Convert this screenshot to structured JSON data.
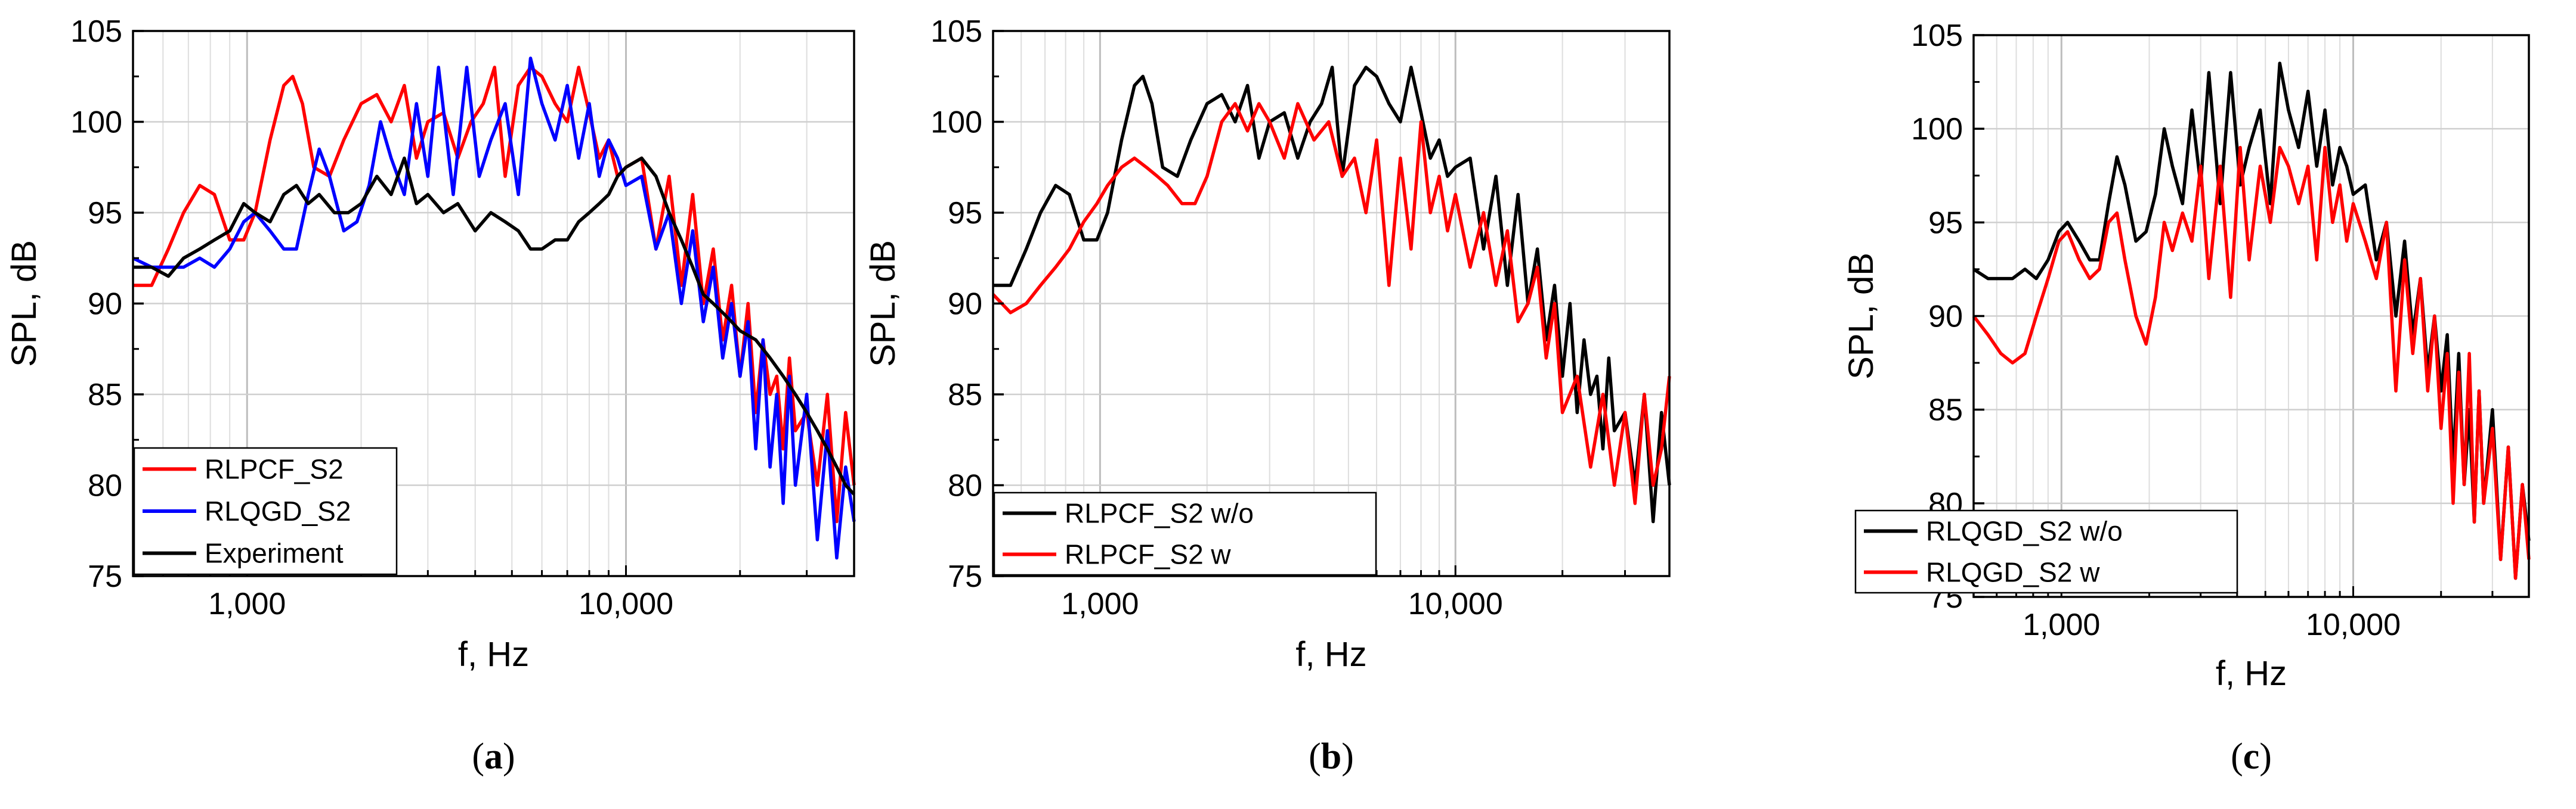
{
  "figure": {
    "panels": [
      "a",
      "b",
      "c"
    ]
  },
  "chart_data": [
    {
      "id": "a",
      "type": "line",
      "panel_label": "a",
      "xlabel": "f, Hz",
      "ylabel": "SPL, dB",
      "xscale": "log",
      "xlim": [
        500,
        40000
      ],
      "ylim": [
        75,
        105
      ],
      "yticks": [
        75,
        80,
        85,
        90,
        95,
        100,
        105
      ],
      "xticks": [
        1000,
        10000
      ],
      "xtick_labels": [
        "1,000",
        "10,000"
      ],
      "grid": true,
      "legend_position": "bottom-left",
      "series": [
        {
          "name": "RLPCF_S2",
          "color": "#ff0000",
          "x": [
            500,
            560,
            620,
            680,
            750,
            820,
            900,
            980,
            1050,
            1150,
            1250,
            1320,
            1400,
            1500,
            1650,
            1800,
            2000,
            2200,
            2400,
            2600,
            2800,
            3000,
            3300,
            3600,
            3900,
            4200,
            4500,
            4800,
            5200,
            5600,
            6000,
            6500,
            7000,
            7500,
            8000,
            8500,
            9000,
            9500,
            10000,
            11000,
            12000,
            13000,
            14000,
            15000,
            16000,
            17000,
            18000,
            19000,
            20000,
            21000,
            22000,
            23000,
            24000,
            25000,
            26000,
            27000,
            28000,
            30000,
            32000,
            34000,
            36000,
            38000,
            40000
          ],
          "values": [
            91,
            91,
            93,
            95,
            96.5,
            96,
            93.5,
            93.5,
            95,
            99,
            102,
            102.5,
            101,
            97.5,
            97,
            99,
            101,
            101.5,
            100,
            102,
            98,
            100,
            100.5,
            98,
            100,
            101,
            103,
            97,
            102,
            103,
            102.5,
            101,
            100,
            103,
            100.5,
            98,
            99,
            97,
            97.5,
            98,
            93,
            97,
            91,
            96,
            90,
            93,
            88,
            91,
            86,
            90,
            84,
            88,
            85,
            86,
            82,
            87,
            83,
            84,
            80,
            85,
            78,
            84,
            80
          ]
        },
        {
          "name": "RLQGD_S2",
          "color": "#0000ff",
          "x": [
            500,
            560,
            620,
            680,
            750,
            820,
            900,
            980,
            1050,
            1150,
            1250,
            1350,
            1450,
            1550,
            1650,
            1800,
            1950,
            2100,
            2250,
            2400,
            2600,
            2800,
            3000,
            3200,
            3500,
            3800,
            4100,
            4400,
            4800,
            5200,
            5600,
            6000,
            6500,
            7000,
            7500,
            8000,
            8500,
            9000,
            9500,
            10000,
            11000,
            12000,
            13000,
            14000,
            15000,
            16000,
            17000,
            18000,
            19000,
            20000,
            21000,
            22000,
            23000,
            24000,
            25000,
            26000,
            27000,
            28000,
            30000,
            32000,
            34000,
            36000,
            38000,
            40000
          ],
          "values": [
            92.5,
            92,
            92,
            92,
            92.5,
            92,
            93,
            94.5,
            95,
            94,
            93,
            93,
            96,
            98.5,
            97,
            94,
            94.5,
            96.5,
            100,
            98,
            96,
            101,
            97,
            103,
            96,
            103,
            97,
            99,
            101,
            96,
            103.5,
            101,
            99,
            102,
            98,
            101,
            97,
            99,
            98,
            96.5,
            97,
            93,
            95,
            90,
            94,
            89,
            92,
            87,
            90,
            86,
            89,
            82,
            88,
            81,
            85,
            79,
            86,
            80,
            85,
            77,
            83,
            76,
            81,
            78
          ]
        },
        {
          "name": "Experiment",
          "color": "#000000",
          "x": [
            500,
            560,
            620,
            680,
            750,
            820,
            900,
            980,
            1050,
            1150,
            1250,
            1350,
            1450,
            1550,
            1700,
            1850,
            2000,
            2200,
            2400,
            2600,
            2800,
            3000,
            3300,
            3600,
            4000,
            4400,
            4800,
            5200,
            5600,
            6000,
            6500,
            7000,
            7500,
            8000,
            8500,
            9000,
            9500,
            10000,
            11000,
            12000,
            13000,
            14000,
            15000,
            16000,
            17000,
            18000,
            19000,
            20000,
            22000,
            24000,
            26000,
            28000,
            30000,
            32000,
            34000,
            36000,
            38000,
            40000
          ],
          "values": [
            92,
            92,
            91.5,
            92.5,
            93,
            93.5,
            94,
            95.5,
            95,
            94.5,
            96,
            96.5,
            95.5,
            96,
            95,
            95,
            95.5,
            97,
            96,
            98,
            95.5,
            96,
            95,
            95.5,
            94,
            95,
            94.5,
            94,
            93,
            93,
            93.5,
            93.5,
            94.5,
            95,
            95.5,
            96,
            97,
            97.5,
            98,
            97,
            95,
            93.5,
            92,
            90.5,
            90,
            89.5,
            89,
            88.5,
            88,
            87,
            86,
            85,
            84,
            83,
            82,
            81,
            80,
            79.5
          ]
        }
      ]
    },
    {
      "id": "b",
      "type": "line",
      "panel_label": "b",
      "xlabel": "f, Hz",
      "ylabel": "SPL, dB",
      "xscale": "log",
      "xlim": [
        500,
        40000
      ],
      "ylim": [
        75,
        105
      ],
      "yticks": [
        75,
        80,
        85,
        90,
        95,
        100,
        105
      ],
      "xticks": [
        1000,
        10000
      ],
      "xtick_labels": [
        "1,000",
        "10,000"
      ],
      "grid": true,
      "legend_position": "bottom-left",
      "series": [
        {
          "name": "RLPCF_S2 w/o",
          "color": "#000000",
          "x": [
            500,
            560,
            620,
            680,
            750,
            820,
            900,
            980,
            1050,
            1150,
            1250,
            1320,
            1400,
            1500,
            1650,
            1800,
            2000,
            2200,
            2400,
            2600,
            2800,
            3000,
            3300,
            3600,
            3900,
            4200,
            4500,
            4800,
            5200,
            5600,
            6000,
            6500,
            7000,
            7500,
            8000,
            8500,
            9000,
            9500,
            10000,
            11000,
            12000,
            13000,
            14000,
            15000,
            16000,
            17000,
            18000,
            19000,
            20000,
            21000,
            22000,
            23000,
            24000,
            25000,
            26000,
            27000,
            28000,
            30000,
            32000,
            34000,
            36000,
            38000,
            40000
          ],
          "values": [
            91,
            91,
            93,
            95,
            96.5,
            96,
            93.5,
            93.5,
            95,
            99,
            102,
            102.5,
            101,
            97.5,
            97,
            99,
            101,
            101.5,
            100,
            102,
            98,
            100,
            100.5,
            98,
            100,
            101,
            103,
            97,
            102,
            103,
            102.5,
            101,
            100,
            103,
            100.5,
            98,
            99,
            97,
            97.5,
            98,
            93,
            97,
            91,
            96,
            90,
            93,
            88,
            91,
            86,
            90,
            84,
            88,
            85,
            86,
            82,
            87,
            83,
            84,
            80,
            85,
            78,
            84,
            80
          ]
        },
        {
          "name": "RLPCF_S2 w",
          "color": "#ff0000",
          "x": [
            500,
            560,
            620,
            680,
            750,
            820,
            900,
            980,
            1050,
            1150,
            1250,
            1350,
            1450,
            1550,
            1700,
            1850,
            2000,
            2200,
            2400,
            2600,
            2800,
            3000,
            3300,
            3600,
            4000,
            4400,
            4800,
            5200,
            5600,
            6000,
            6500,
            7000,
            7500,
            8000,
            8500,
            9000,
            9500,
            10000,
            11000,
            12000,
            13000,
            14000,
            15000,
            16000,
            17000,
            18000,
            19000,
            20000,
            22000,
            24000,
            26000,
            28000,
            30000,
            32000,
            34000,
            36000,
            38000,
            40000
          ],
          "values": [
            90.5,
            89.5,
            90,
            91,
            92,
            93,
            94.5,
            95.5,
            96.5,
            97.5,
            98,
            97.5,
            97,
            96.5,
            95.5,
            95.5,
            97,
            100,
            101,
            99.5,
            101,
            100,
            98,
            101,
            99,
            100,
            97,
            98,
            95,
            99,
            91,
            98,
            93,
            100,
            95,
            97,
            94,
            96,
            92,
            95,
            91,
            94,
            89,
            90,
            92,
            87,
            90,
            84,
            86,
            81,
            85,
            80,
            84,
            79,
            85,
            80,
            82,
            86
          ]
        }
      ]
    },
    {
      "id": "c",
      "type": "line",
      "panel_label": "c",
      "xlabel": "f, Hz",
      "ylabel": "SPL, dB",
      "xscale": "log",
      "xlim": [
        500,
        40000
      ],
      "ylim": [
        75,
        105
      ],
      "yticks": [
        75,
        80,
        85,
        90,
        95,
        100,
        105
      ],
      "xticks": [
        1000,
        10000
      ],
      "xtick_labels": [
        "1,000",
        "10,000"
      ],
      "grid": true,
      "legend_position": "bottom-left",
      "series": [
        {
          "name": "RLQGD_S2 w/o",
          "color": "#000000",
          "x": [
            500,
            560,
            620,
            680,
            750,
            820,
            900,
            980,
            1050,
            1150,
            1250,
            1350,
            1450,
            1550,
            1650,
            1800,
            1950,
            2100,
            2250,
            2400,
            2600,
            2800,
            3000,
            3200,
            3500,
            3800,
            4100,
            4400,
            4800,
            5200,
            5600,
            6000,
            6500,
            7000,
            7500,
            8000,
            8500,
            9000,
            9500,
            10000,
            11000,
            12000,
            13000,
            14000,
            15000,
            16000,
            17000,
            18000,
            19000,
            20000,
            21000,
            22000,
            23000,
            24000,
            25000,
            26000,
            27000,
            28000,
            30000,
            32000,
            34000,
            36000,
            38000,
            40000
          ],
          "values": [
            92.5,
            92,
            92,
            92,
            92.5,
            92,
            93,
            94.5,
            95,
            94,
            93,
            93,
            96,
            98.5,
            97,
            94,
            94.5,
            96.5,
            100,
            98,
            96,
            101,
            97,
            103,
            96,
            103,
            97,
            99,
            101,
            96,
            103.5,
            101,
            99,
            102,
            98,
            101,
            97,
            99,
            98,
            96.5,
            97,
            93,
            95,
            90,
            94,
            89,
            92,
            87,
            90,
            86,
            89,
            82,
            88,
            81,
            85,
            79,
            86,
            80,
            85,
            77,
            83,
            76,
            81,
            78
          ]
        },
        {
          "name": "RLQGD_S2 w",
          "color": "#ff0000",
          "x": [
            500,
            560,
            620,
            680,
            750,
            820,
            900,
            980,
            1050,
            1150,
            1250,
            1350,
            1450,
            1550,
            1650,
            1800,
            1950,
            2100,
            2250,
            2400,
            2600,
            2800,
            3000,
            3200,
            3500,
            3800,
            4100,
            4400,
            4800,
            5200,
            5600,
            6000,
            6500,
            7000,
            7500,
            8000,
            8500,
            9000,
            9500,
            10000,
            11000,
            12000,
            13000,
            14000,
            15000,
            16000,
            17000,
            18000,
            19000,
            20000,
            21000,
            22000,
            23000,
            24000,
            25000,
            26000,
            27000,
            28000,
            30000,
            32000,
            34000,
            36000,
            38000,
            40000
          ],
          "values": [
            90,
            89,
            88,
            87.5,
            88,
            90,
            92,
            94,
            94.5,
            93,
            92,
            92.5,
            95,
            95.5,
            93,
            90,
            88.5,
            91,
            95,
            93.5,
            95.5,
            94,
            98,
            92,
            98,
            91,
            99,
            93,
            98,
            95,
            99,
            98,
            96,
            98,
            93,
            99,
            95,
            97,
            94,
            96,
            94,
            92,
            95,
            86,
            93,
            88,
            92,
            86,
            90,
            84,
            88,
            80,
            87,
            81,
            88,
            79,
            86,
            80,
            84,
            77,
            83,
            76,
            81,
            77
          ]
        }
      ]
    }
  ]
}
